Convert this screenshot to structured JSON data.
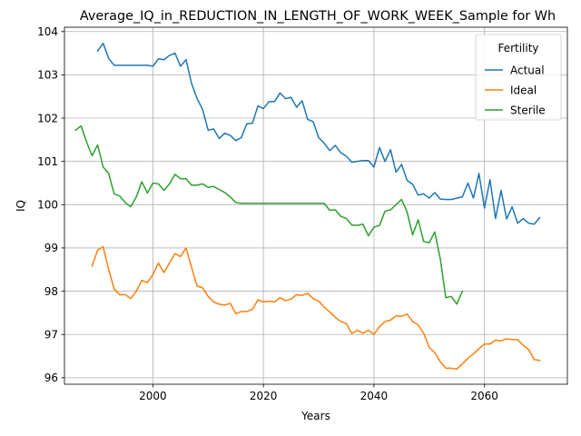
{
  "chart_data": {
    "type": "line",
    "title": "Average_IQ_in_REDUCTION_IN_LENGTH_OF_WORK_WEEK_Sample for Wh",
    "xlabel": "Years",
    "ylabel": "IQ",
    "xlim": [
      1984,
      2075
    ],
    "ylim": [
      95.85,
      104.1
    ],
    "xticks": [
      2000,
      2020,
      2040,
      2060
    ],
    "yticks": [
      96,
      97,
      98,
      99,
      100,
      101,
      102,
      103,
      104
    ],
    "grid": true,
    "legend": {
      "title": "Fertility",
      "position": "top-right"
    },
    "series": [
      {
        "name": "Actual",
        "color": "#1f77b4",
        "x": [
          1990,
          1991,
          1992,
          1993,
          1994,
          1995,
          1996,
          1997,
          1998,
          1999,
          2000,
          2001,
          2002,
          2003,
          2004,
          2005,
          2006,
          2007,
          2008,
          2009,
          2010,
          2011,
          2012,
          2013,
          2014,
          2015,
          2016,
          2017,
          2018,
          2019,
          2020,
          2021,
          2022,
          2023,
          2024,
          2025,
          2026,
          2027,
          2028,
          2029,
          2030,
          2031,
          2032,
          2033,
          2034,
          2035,
          2036,
          2037,
          2038,
          2039,
          2040,
          2041,
          2042,
          2043,
          2044,
          2045,
          2046,
          2047,
          2048,
          2049,
          2050,
          2051,
          2052,
          2053,
          2054,
          2055,
          2056,
          2057,
          2058,
          2059,
          2060,
          2061,
          2062,
          2063,
          2064,
          2065,
          2066,
          2067,
          2068,
          2069,
          2070
        ],
        "values": [
          103.55,
          103.73,
          103.38,
          103.22,
          103.22,
          103.22,
          103.22,
          103.22,
          103.22,
          103.22,
          103.2,
          103.37,
          103.35,
          103.45,
          103.5,
          103.2,
          103.35,
          102.8,
          102.45,
          102.2,
          101.72,
          101.75,
          101.53,
          101.65,
          101.6,
          101.48,
          101.55,
          101.87,
          101.88,
          102.28,
          102.22,
          102.38,
          102.38,
          102.58,
          102.45,
          102.48,
          102.25,
          102.4,
          101.97,
          101.92,
          101.55,
          101.42,
          101.25,
          101.37,
          101.2,
          101.12,
          100.98,
          101.0,
          101.02,
          101.02,
          100.87,
          101.32,
          101.0,
          101.27,
          100.75,
          100.93,
          100.56,
          100.47,
          100.22,
          100.25,
          100.15,
          100.28,
          100.13,
          100.12,
          100.12,
          100.15,
          100.18,
          100.5,
          100.15,
          100.72,
          99.92,
          100.58,
          99.68,
          100.33,
          99.67,
          99.95,
          99.57,
          99.68,
          99.57,
          99.55,
          99.7
        ]
      },
      {
        "name": "Ideal",
        "color": "#ff7f0e",
        "x": [
          1989,
          1990,
          1991,
          1992,
          1993,
          1994,
          1995,
          1996,
          1997,
          1998,
          1999,
          2000,
          2001,
          2002,
          2003,
          2004,
          2005,
          2006,
          2007,
          2008,
          2009,
          2010,
          2011,
          2012,
          2013,
          2014,
          2015,
          2016,
          2017,
          2018,
          2019,
          2020,
          2021,
          2022,
          2023,
          2024,
          2025,
          2026,
          2027,
          2028,
          2029,
          2030,
          2031,
          2032,
          2033,
          2034,
          2035,
          2036,
          2037,
          2038,
          2039,
          2040,
          2041,
          2042,
          2043,
          2044,
          2045,
          2046,
          2047,
          2048,
          2049,
          2050,
          2051,
          2052,
          2053,
          2054,
          2055,
          2056,
          2057,
          2058,
          2059,
          2060,
          2061,
          2062,
          2063,
          2064,
          2065,
          2066,
          2067,
          2068,
          2069,
          2070
        ],
        "values": [
          98.58,
          98.95,
          99.03,
          98.5,
          98.05,
          97.92,
          97.92,
          97.83,
          98.0,
          98.25,
          98.2,
          98.38,
          98.65,
          98.43,
          98.65,
          98.87,
          98.8,
          99.0,
          98.55,
          98.12,
          98.08,
          97.88,
          97.75,
          97.7,
          97.68,
          97.72,
          97.48,
          97.53,
          97.53,
          97.58,
          97.8,
          97.75,
          97.77,
          97.75,
          97.85,
          97.78,
          97.82,
          97.92,
          97.9,
          97.95,
          97.83,
          97.77,
          97.63,
          97.52,
          97.4,
          97.3,
          97.25,
          97.02,
          97.1,
          97.03,
          97.1,
          97.0,
          97.18,
          97.3,
          97.33,
          97.43,
          97.42,
          97.47,
          97.3,
          97.22,
          97.03,
          96.7,
          96.58,
          96.37,
          96.22,
          96.22,
          96.2,
          96.32,
          96.45,
          96.55,
          96.67,
          96.78,
          96.78,
          96.87,
          96.85,
          96.9,
          96.88,
          96.88,
          96.75,
          96.65,
          96.42,
          96.4
        ]
      },
      {
        "name": "Sterile",
        "color": "#2ca02c",
        "x": [
          1986,
          1987,
          1988,
          1989,
          1990,
          1991,
          1992,
          1993,
          1994,
          1995,
          1996,
          1997,
          1998,
          1999,
          2000,
          2001,
          2002,
          2003,
          2004,
          2005,
          2006,
          2007,
          2008,
          2009,
          2010,
          2011,
          2012,
          2013,
          2014,
          2015,
          2016,
          2017,
          2018,
          2019,
          2020,
          2021,
          2022,
          2023,
          2024,
          2025,
          2026,
          2027,
          2028,
          2029,
          2030,
          2031,
          2032,
          2033,
          2034,
          2035,
          2036,
          2037,
          2038,
          2039,
          2040,
          2041,
          2042,
          2043,
          2044,
          2045,
          2046,
          2047,
          2048,
          2049,
          2050,
          2051,
          2052,
          2053,
          2054,
          2055,
          2056
        ],
        "values": [
          101.72,
          101.82,
          101.45,
          101.13,
          101.38,
          100.87,
          100.72,
          100.25,
          100.2,
          100.05,
          99.95,
          100.18,
          100.53,
          100.27,
          100.5,
          100.48,
          100.33,
          100.48,
          100.7,
          100.6,
          100.6,
          100.45,
          100.45,
          100.48,
          100.4,
          100.42,
          100.35,
          100.28,
          100.18,
          100.05,
          100.03,
          100.03,
          100.03,
          100.03,
          100.03,
          100.03,
          100.03,
          100.03,
          100.03,
          100.03,
          100.03,
          100.03,
          100.03,
          100.03,
          100.03,
          100.03,
          99.87,
          99.88,
          99.73,
          99.68,
          99.53,
          99.52,
          99.55,
          99.28,
          99.48,
          99.52,
          99.85,
          99.88,
          100.0,
          100.12,
          99.83,
          99.3,
          99.65,
          99.15,
          99.12,
          99.37,
          98.75,
          97.85,
          97.88,
          97.7,
          98.0
        ]
      }
    ]
  }
}
